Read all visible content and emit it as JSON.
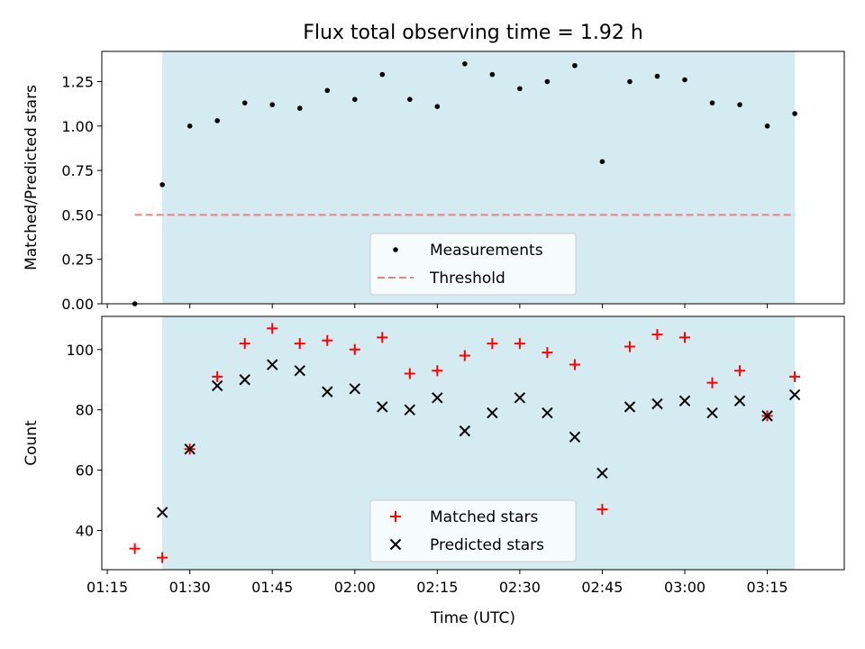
{
  "figure": {
    "title": "Flux total observing time = 1.92 h",
    "xlabel": "Time (UTC)",
    "x_ticks": [
      "01:15",
      "01:30",
      "01:45",
      "02:00",
      "02:15",
      "02:30",
      "02:45",
      "03:00",
      "03:15"
    ]
  },
  "chart_data": [
    {
      "type": "scatter",
      "ylabel": "Matched/Predicted stars",
      "ylim": [
        0.0,
        1.42
      ],
      "y_ticks": [
        "0.00",
        "0.25",
        "0.50",
        "0.75",
        "1.00",
        "1.25"
      ],
      "xlim": [
        "01:14",
        "03:29"
      ],
      "shaded_region": {
        "from": "01:25",
        "to": "03:20",
        "color": "#d3ebf1"
      },
      "threshold": {
        "name": "Threshold",
        "value": 0.5,
        "from": "01:20",
        "to": "03:20",
        "color": "#f08080"
      },
      "series": [
        {
          "name": "Measurements",
          "marker": "dot",
          "color": "#000000",
          "x": [
            "01:20",
            "01:25",
            "01:30",
            "01:35",
            "01:40",
            "01:45",
            "01:50",
            "01:55",
            "02:00",
            "02:05",
            "02:10",
            "02:15",
            "02:20",
            "02:25",
            "02:30",
            "02:35",
            "02:40",
            "02:45",
            "02:50",
            "02:55",
            "03:00",
            "03:05",
            "03:10",
            "03:15",
            "03:20"
          ],
          "values": [
            0.0,
            0.67,
            1.0,
            1.03,
            1.13,
            1.12,
            1.1,
            1.2,
            1.15,
            1.29,
            1.15,
            1.11,
            1.35,
            1.29,
            1.21,
            1.25,
            1.34,
            0.8,
            1.25,
            1.28,
            1.26,
            1.13,
            1.12,
            1.0,
            1.07
          ]
        }
      ],
      "legend": {
        "placement": "lower center",
        "items": [
          "Measurements",
          "Threshold"
        ]
      }
    },
    {
      "type": "scatter",
      "ylabel": "Count",
      "ylim": [
        27,
        111
      ],
      "y_ticks": [
        "40",
        "60",
        "80",
        "100"
      ],
      "xlim": [
        "01:14",
        "03:29"
      ],
      "shaded_region": {
        "from": "01:25",
        "to": "03:20",
        "color": "#d3ebf1"
      },
      "series": [
        {
          "name": "Matched stars",
          "marker": "plus",
          "color": "#ff0000",
          "x": [
            "01:20",
            "01:25",
            "01:30",
            "01:35",
            "01:40",
            "01:45",
            "01:50",
            "01:55",
            "02:00",
            "02:05",
            "02:10",
            "02:15",
            "02:20",
            "02:25",
            "02:30",
            "02:35",
            "02:40",
            "02:45",
            "02:50",
            "02:55",
            "03:00",
            "03:05",
            "03:10",
            "03:15",
            "03:20"
          ],
          "values": [
            34,
            31,
            67,
            91,
            102,
            107,
            102,
            103,
            100,
            104,
            92,
            93,
            98,
            102,
            102,
            99,
            95,
            47,
            101,
            105,
            104,
            89,
            93,
            78,
            91
          ]
        },
        {
          "name": "Predicted stars",
          "marker": "x",
          "color": "#000000",
          "x": [
            "01:25",
            "01:30",
            "01:35",
            "01:40",
            "01:45",
            "01:50",
            "01:55",
            "02:00",
            "02:05",
            "02:10",
            "02:15",
            "02:20",
            "02:25",
            "02:30",
            "02:35",
            "02:40",
            "02:45",
            "02:50",
            "02:55",
            "03:00",
            "03:05",
            "03:10",
            "03:15",
            "03:20"
          ],
          "values": [
            46,
            67,
            88,
            90,
            95,
            93,
            86,
            87,
            81,
            80,
            84,
            73,
            79,
            84,
            79,
            71,
            59,
            81,
            82,
            83,
            79,
            83,
            78,
            85
          ]
        }
      ],
      "legend": {
        "placement": "lower center",
        "items": [
          "Matched stars",
          "Predicted stars"
        ]
      }
    }
  ]
}
